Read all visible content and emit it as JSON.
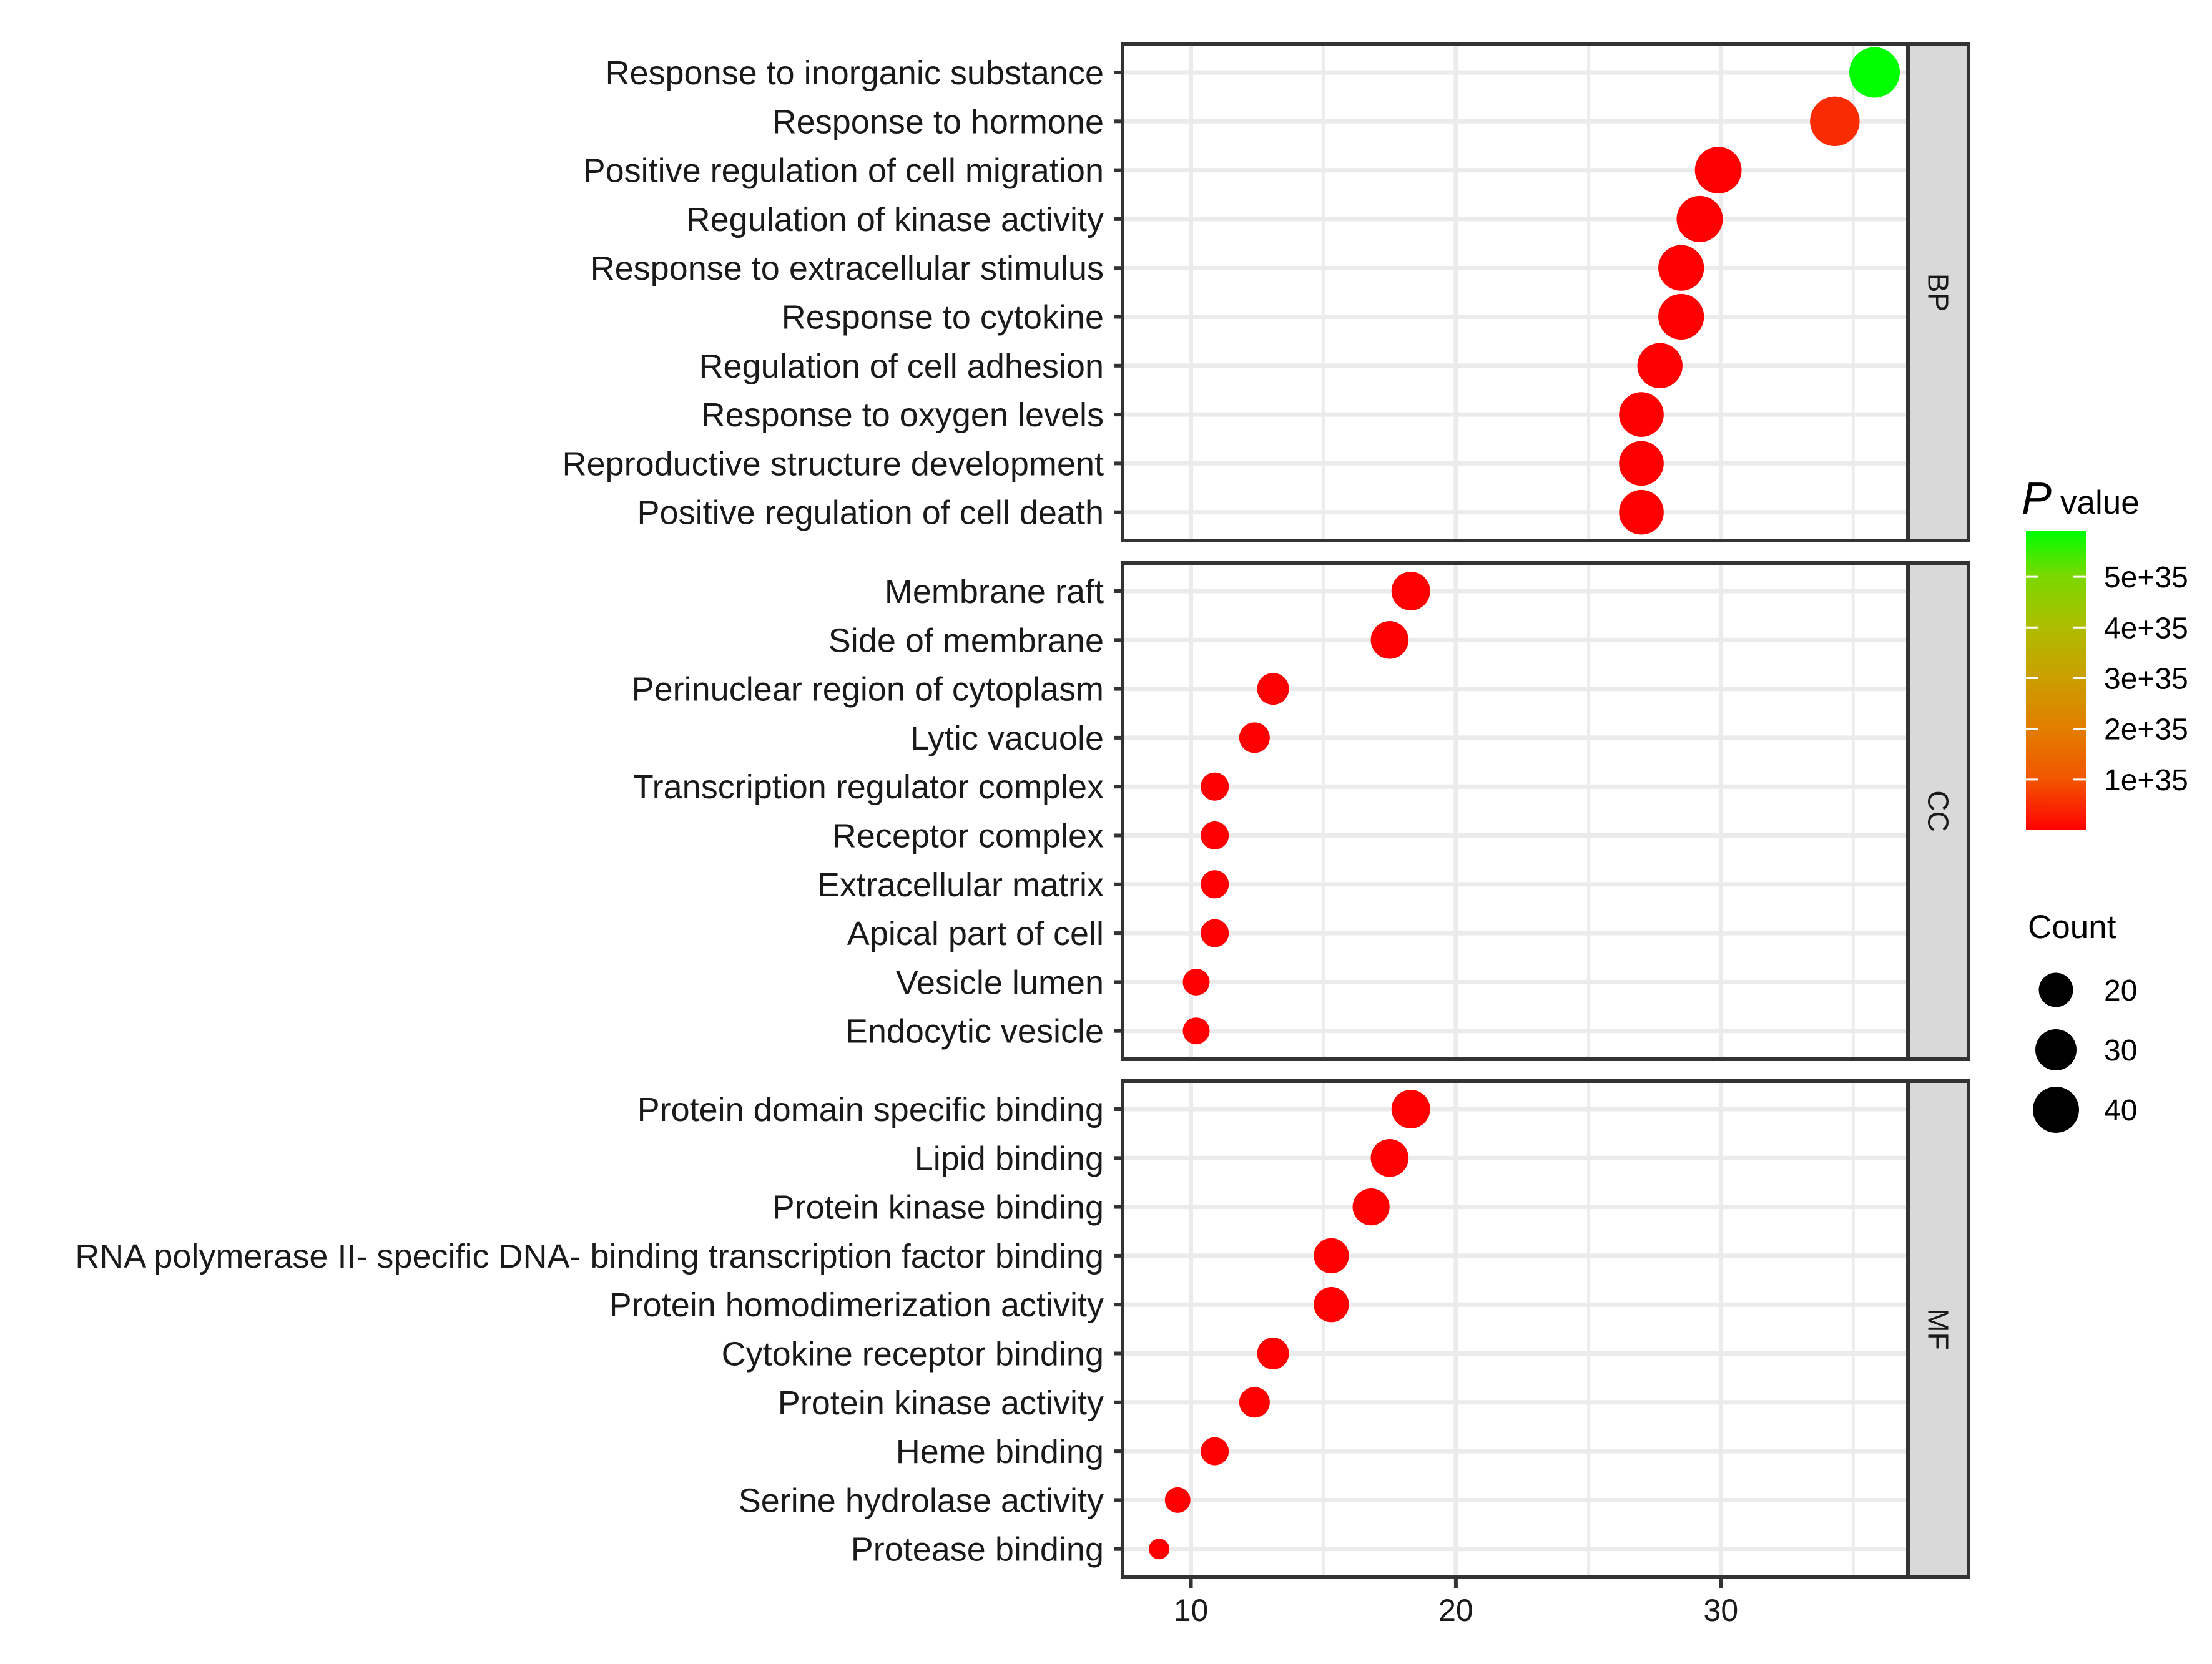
{
  "chart_data": {
    "type": "scatter",
    "subtype": "bubble",
    "title": "",
    "xlabel": "",
    "ylabel": "",
    "xlim": [
      7.42,
      37.06
    ],
    "x_ticks": [
      10,
      20,
      30
    ],
    "x_tick_labels": [
      "10",
      "20",
      "30"
    ],
    "grid": true,
    "facets": [
      {
        "strip": "BP",
        "points": [
          {
            "term": "Response to inorganic substance",
            "x": 35.8,
            "count": 49,
            "p_value": 5.9e+35
          },
          {
            "term": "Response to hormone",
            "x": 34.3,
            "count": 47,
            "p_value": 5e+34
          },
          {
            "term": "Positive regulation of cell migration",
            "x": 29.9,
            "count": 41,
            "p_value": 0
          },
          {
            "term": "Regulation of kinase activity",
            "x": 29.2,
            "count": 40,
            "p_value": 0
          },
          {
            "term": "Response to extracellular stimulus",
            "x": 28.5,
            "count": 39,
            "p_value": 0
          },
          {
            "term": "Response to cytokine",
            "x": 28.5,
            "count": 39,
            "p_value": 0
          },
          {
            "term": "Regulation of cell adhesion",
            "x": 27.7,
            "count": 38,
            "p_value": 0
          },
          {
            "term": "Response to oxygen levels",
            "x": 27.0,
            "count": 37,
            "p_value": 0
          },
          {
            "term": "Reproductive structure development",
            "x": 27.0,
            "count": 37,
            "p_value": 0
          },
          {
            "term": "Positive regulation of cell death",
            "x": 27.0,
            "count": 37,
            "p_value": 0
          }
        ]
      },
      {
        "strip": "CC",
        "points": [
          {
            "term": "Membrane raft",
            "x": 18.3,
            "count": 25,
            "p_value": 0
          },
          {
            "term": "Side of membrane",
            "x": 17.5,
            "count": 24,
            "p_value": 0
          },
          {
            "term": "Perinuclear region of cytoplasm",
            "x": 13.1,
            "count": 18,
            "p_value": 0
          },
          {
            "term": "Lytic vacuole",
            "x": 12.4,
            "count": 17,
            "p_value": 0
          },
          {
            "term": "Transcription regulator complex",
            "x": 10.9,
            "count": 15,
            "p_value": 0
          },
          {
            "term": "Receptor complex",
            "x": 10.9,
            "count": 15,
            "p_value": 0
          },
          {
            "term": "Extracellular matrix",
            "x": 10.9,
            "count": 15,
            "p_value": 0
          },
          {
            "term": "Apical part of cell",
            "x": 10.9,
            "count": 15,
            "p_value": 0
          },
          {
            "term": "Vesicle lumen",
            "x": 10.2,
            "count": 14,
            "p_value": 0
          },
          {
            "term": "Endocytic vesicle",
            "x": 10.2,
            "count": 14,
            "p_value": 0
          }
        ]
      },
      {
        "strip": "MF",
        "points": [
          {
            "term": "Protein domain specific binding",
            "x": 18.3,
            "count": 25,
            "p_value": 0
          },
          {
            "term": "Lipid binding",
            "x": 17.5,
            "count": 24,
            "p_value": 0
          },
          {
            "term": "Protein kinase binding",
            "x": 16.8,
            "count": 23,
            "p_value": 0
          },
          {
            "term": "RNA polymerase II- specific DNA- binding transcription factor binding",
            "x": 15.3,
            "count": 21,
            "p_value": 0
          },
          {
            "term": "Protein homodimerization activity",
            "x": 15.3,
            "count": 21,
            "p_value": 0
          },
          {
            "term": "Cytokine receptor binding",
            "x": 13.1,
            "count": 18,
            "p_value": 0
          },
          {
            "term": "Protein kinase activity",
            "x": 12.4,
            "count": 17,
            "p_value": 0
          },
          {
            "term": "Heme binding",
            "x": 10.9,
            "count": 15,
            "p_value": 0
          },
          {
            "term": "Serine hydrolase activity",
            "x": 9.5,
            "count": 13,
            "p_value": 0
          },
          {
            "term": "Protease binding",
            "x": 8.8,
            "count": 12,
            "p_value": 0
          }
        ]
      }
    ],
    "legend": {
      "color": {
        "title_italic": "P",
        "title": "value",
        "range": [
          0,
          5.9e+35
        ],
        "ticks": [
          1e+35,
          2e+35,
          3e+35,
          4e+35,
          5e+35
        ],
        "tick_labels": [
          "1e+35",
          "2e+35",
          "3e+35",
          "4e+35",
          "5e+35"
        ],
        "low_color": "#ff0000",
        "high_color": "#00ff00",
        "placement": "right"
      },
      "size": {
        "title": "Count",
        "values": [
          20,
          30,
          40
        ],
        "labels": [
          "20",
          "30",
          "40"
        ],
        "placement": "right"
      }
    },
    "colors": {
      "grid": "#ebebeb",
      "panel_border": "#333333",
      "strip_fill": "#d9d9d9",
      "legend_key": "#000000"
    }
  }
}
